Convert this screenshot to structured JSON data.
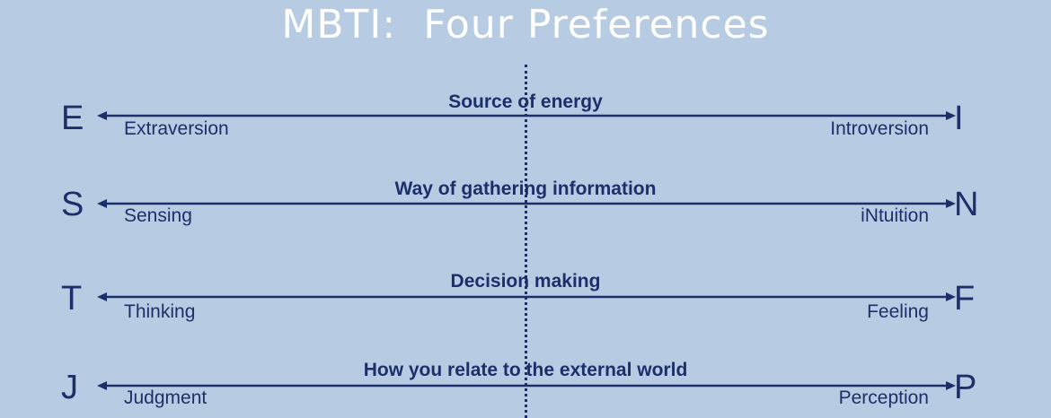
{
  "title": "MBTI:  Four Preferences",
  "colors": {
    "background": "#b7cce3",
    "ink": "#1d2f6a",
    "title": "#ffffff"
  },
  "preferences": [
    {
      "heading": "Source of energy",
      "left_letter": "E",
      "left_label": "Extraversion",
      "right_letter": "I",
      "right_label": "Introversion"
    },
    {
      "heading": "Way of gathering information",
      "left_letter": "S",
      "left_label": "Sensing",
      "right_letter": "N",
      "right_label": "iNtuition"
    },
    {
      "heading": "Decision making",
      "left_letter": "T",
      "left_label": "Thinking",
      "right_letter": "F",
      "right_label": "Feeling"
    },
    {
      "heading": "How  you relate to the external world",
      "left_letter": "J",
      "left_label": "Judgment",
      "right_letter": "P",
      "right_label": "Perception"
    }
  ]
}
